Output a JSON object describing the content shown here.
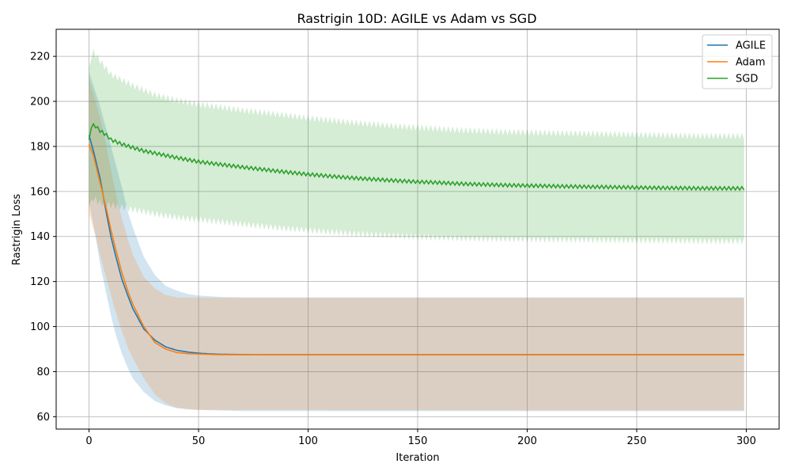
{
  "chart_data": {
    "type": "line",
    "title": "Rastrigin 10D: AGILE vs Adam vs SGD",
    "xlabel": "Iteration",
    "ylabel": "Rastrigin Loss",
    "xlim": [
      -15,
      315
    ],
    "ylim": [
      54.5,
      232
    ],
    "x_ticks": [
      0,
      50,
      100,
      150,
      200,
      250,
      300
    ],
    "y_ticks": [
      60,
      80,
      100,
      120,
      140,
      160,
      180,
      200,
      220
    ],
    "grid": true,
    "legend": "top-right",
    "x_range": [
      0,
      299
    ],
    "series": [
      {
        "name": "AGILE",
        "color": "#1f77b4",
        "band_alpha": 0.2,
        "points": [
          [
            0,
            185
          ],
          [
            2,
            178
          ],
          [
            5,
            166
          ],
          [
            8,
            150
          ],
          [
            10,
            140
          ],
          [
            12,
            132
          ],
          [
            15,
            121
          ],
          [
            18,
            113
          ],
          [
            20,
            108
          ],
          [
            25,
            99
          ],
          [
            30,
            94
          ],
          [
            35,
            91
          ],
          [
            40,
            89.5
          ],
          [
            45,
            88.7
          ],
          [
            50,
            88.2
          ],
          [
            55,
            87.9
          ],
          [
            60,
            87.7
          ],
          [
            70,
            87.6
          ],
          [
            80,
            87.5
          ],
          [
            299,
            87.5
          ]
        ],
        "band_upper": [
          [
            0,
            213
          ],
          [
            5,
            198
          ],
          [
            10,
            180
          ],
          [
            15,
            162
          ],
          [
            18,
            150
          ],
          [
            20,
            144
          ],
          [
            25,
            131
          ],
          [
            30,
            123
          ],
          [
            35,
            118
          ],
          [
            40,
            116
          ],
          [
            45,
            114.5
          ],
          [
            50,
            113.8
          ],
          [
            60,
            113.2
          ],
          [
            70,
            113
          ],
          [
            299,
            113
          ]
        ],
        "band_lower": [
          [
            0,
            155
          ],
          [
            3,
            140
          ],
          [
            5,
            128
          ],
          [
            8,
            114
          ],
          [
            10,
            105
          ],
          [
            12,
            97
          ],
          [
            15,
            88
          ],
          [
            18,
            81
          ],
          [
            20,
            77
          ],
          [
            25,
            71
          ],
          [
            30,
            67
          ],
          [
            35,
            65
          ],
          [
            40,
            63.8
          ],
          [
            50,
            63
          ],
          [
            70,
            62.5
          ],
          [
            299,
            62.5
          ]
        ]
      },
      {
        "name": "Adam",
        "color": "#ff7f0e",
        "band_alpha": 0.2,
        "points": [
          [
            0,
            181
          ],
          [
            2,
            176
          ],
          [
            5,
            164
          ],
          [
            8,
            152
          ],
          [
            10,
            143
          ],
          [
            12,
            135
          ],
          [
            15,
            124
          ],
          [
            18,
            115
          ],
          [
            20,
            110
          ],
          [
            25,
            100
          ],
          [
            30,
            93
          ],
          [
            35,
            90
          ],
          [
            40,
            88.5
          ],
          [
            45,
            88
          ],
          [
            50,
            87.8
          ],
          [
            60,
            87.5
          ],
          [
            299,
            87.5
          ]
        ],
        "band_upper": [
          [
            0,
            210
          ],
          [
            3,
            200
          ],
          [
            5,
            193
          ],
          [
            8,
            180
          ],
          [
            10,
            170
          ],
          [
            12,
            160
          ],
          [
            15,
            148
          ],
          [
            18,
            138
          ],
          [
            20,
            132
          ],
          [
            25,
            122
          ],
          [
            30,
            117
          ],
          [
            35,
            114
          ],
          [
            40,
            113
          ],
          [
            50,
            112.8
          ],
          [
            299,
            112.8
          ]
        ],
        "band_lower": [
          [
            0,
            150
          ],
          [
            3,
            140
          ],
          [
            5,
            132
          ],
          [
            8,
            121
          ],
          [
            10,
            114
          ],
          [
            12,
            107
          ],
          [
            15,
            98
          ],
          [
            18,
            90
          ],
          [
            20,
            86
          ],
          [
            25,
            77
          ],
          [
            30,
            70
          ],
          [
            35,
            66
          ],
          [
            40,
            64
          ],
          [
            45,
            63.2
          ],
          [
            50,
            63
          ],
          [
            299,
            62.8
          ]
        ]
      },
      {
        "name": "SGD",
        "color": "#2ca02c",
        "band_alpha": 0.2,
        "oscillation": 1.2,
        "band_oscillation": 1.5,
        "points": [
          [
            0,
            183
          ],
          [
            1,
            188
          ],
          [
            2,
            190
          ],
          [
            3,
            189
          ],
          [
            5,
            187
          ],
          [
            8,
            185
          ],
          [
            10,
            183
          ],
          [
            15,
            181
          ],
          [
            20,
            179.5
          ],
          [
            25,
            178
          ],
          [
            30,
            177
          ],
          [
            40,
            175
          ],
          [
            50,
            173.2
          ],
          [
            60,
            172
          ],
          [
            70,
            170.8
          ],
          [
            80,
            169.7
          ],
          [
            90,
            168.6
          ],
          [
            100,
            167.6
          ],
          [
            110,
            166.8
          ],
          [
            120,
            166
          ],
          [
            130,
            165.4
          ],
          [
            140,
            164.8
          ],
          [
            150,
            164.3
          ],
          [
            160,
            163.9
          ],
          [
            170,
            163.4
          ],
          [
            180,
            163.1
          ],
          [
            190,
            162.8
          ],
          [
            200,
            162.6
          ],
          [
            220,
            162.2
          ],
          [
            240,
            161.9
          ],
          [
            260,
            161.6
          ],
          [
            280,
            161.4
          ],
          [
            299,
            161.4
          ]
        ],
        "band_upper": [
          [
            0,
            215
          ],
          [
            1,
            220
          ],
          [
            2,
            222
          ],
          [
            5,
            218
          ],
          [
            10,
            212
          ],
          [
            20,
            207
          ],
          [
            30,
            203
          ],
          [
            40,
            200.5
          ],
          [
            50,
            198.7
          ],
          [
            60,
            197.4
          ],
          [
            70,
            196
          ],
          [
            80,
            195
          ],
          [
            90,
            193.8
          ],
          [
            100,
            192.6
          ],
          [
            110,
            191.6
          ],
          [
            120,
            190.6
          ],
          [
            130,
            189.8
          ],
          [
            140,
            189
          ],
          [
            150,
            188.4
          ],
          [
            160,
            187.8
          ],
          [
            170,
            187.2
          ],
          [
            180,
            186.8
          ],
          [
            190,
            186.4
          ],
          [
            200,
            186.2
          ],
          [
            220,
            185.8
          ],
          [
            240,
            185.4
          ],
          [
            260,
            185
          ],
          [
            280,
            184.6
          ],
          [
            299,
            184.6
          ]
        ],
        "band_lower": [
          [
            0,
            153
          ],
          [
            2,
            157
          ],
          [
            5,
            155
          ],
          [
            10,
            154
          ],
          [
            20,
            152
          ],
          [
            30,
            150
          ],
          [
            40,
            148.5
          ],
          [
            50,
            147.5
          ],
          [
            60,
            146.5
          ],
          [
            70,
            145.5
          ],
          [
            80,
            144.5
          ],
          [
            90,
            143.5
          ],
          [
            100,
            142.8
          ],
          [
            110,
            142
          ],
          [
            120,
            141.3
          ],
          [
            130,
            140.8
          ],
          [
            140,
            140.3
          ],
          [
            150,
            139.8
          ],
          [
            160,
            139.5
          ],
          [
            170,
            139.2
          ],
          [
            180,
            139
          ],
          [
            200,
            138.8
          ],
          [
            220,
            138.6
          ],
          [
            240,
            138.4
          ],
          [
            260,
            138.2
          ],
          [
            280,
            138
          ],
          [
            299,
            138
          ]
        ]
      }
    ]
  }
}
